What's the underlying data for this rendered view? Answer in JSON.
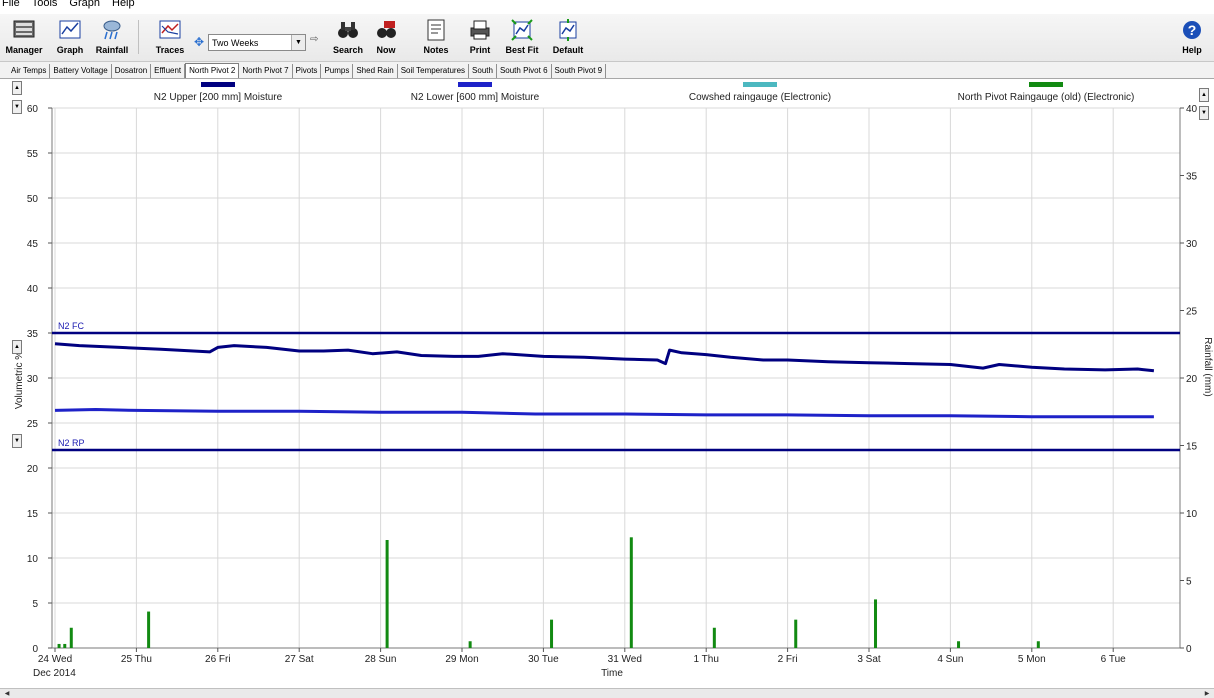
{
  "menu": [
    "File",
    "Tools",
    "Graph",
    "Help"
  ],
  "toolbar": {
    "manager": "Manager",
    "graph": "Graph",
    "rainfall": "Rainfall",
    "traces": "Traces",
    "period": "Two Weeks",
    "search": "Search",
    "now": "Now",
    "notes": "Notes",
    "print": "Print",
    "best_fit": "Best Fit",
    "default": "Default",
    "help": "Help"
  },
  "tabs": [
    "Air Temps",
    "Battery Voltage",
    "Dosatron",
    "Effluent",
    "North Pivot 2",
    "North Pivot 7",
    "Pivots",
    "Pumps",
    "Shed Rain",
    "Soil Temperatures",
    "South",
    "South Pivot 6",
    "South Pivot 9"
  ],
  "active_tab": "North Pivot 2",
  "chart_data": {
    "type": "line",
    "ylabel": "Volumetric %",
    "y2label": "Rainfall (mm)",
    "xlabel": "Time",
    "ylim": [
      0,
      60
    ],
    "y2lim": [
      0,
      40
    ],
    "yticks": [
      0,
      5,
      10,
      15,
      20,
      25,
      30,
      35,
      40,
      45,
      50,
      55,
      60
    ],
    "y2ticks": [
      0,
      5,
      10,
      15,
      20,
      25,
      30,
      35,
      40
    ],
    "xticks": [
      "24 Wed",
      "25 Thu",
      "26 Fri",
      "27 Sat",
      "28 Sun",
      "29 Mon",
      "30 Tue",
      "31 Wed",
      "1 Thu",
      "2 Fri",
      "3 Sat",
      "4 Sun",
      "5 Mon",
      "6 Tue"
    ],
    "x_sublabel": "Dec 2014",
    "grid": true,
    "legend": [
      {
        "name": "N2 Upper  [200 mm] Moisture",
        "color": "#000080"
      },
      {
        "name": "N2 Lower  [600 mm] Moisture",
        "color": "#1e22c8"
      },
      {
        "name": "Cowshed raingauge (Electronic)",
        "color": "#4cb8c0"
      },
      {
        "name": "North Pivot Raingauge (old) (Electronic)",
        "color": "#128a12"
      }
    ],
    "reference_lines": [
      {
        "label": "N2 FC",
        "value": 35,
        "color": "#000080"
      },
      {
        "label": "N2 RP",
        "value": 22,
        "color": "#000080"
      }
    ],
    "series": [
      {
        "name": "N2 Upper  [200 mm] Moisture",
        "axis": "left",
        "color": "#000080",
        "x": [
          0,
          0.3,
          0.8,
          1.3,
          1.9,
          2.0,
          2.2,
          2.6,
          3.0,
          3.3,
          3.6,
          3.9,
          4.2,
          4.5,
          4.9,
          5.2,
          5.5,
          6.0,
          6.5,
          7.0,
          7.4,
          7.5,
          7.55,
          7.7,
          8.0,
          8.3,
          8.7,
          9.0,
          9.5,
          10.0,
          10.5,
          11.0,
          11.4,
          11.6,
          12.0,
          12.4,
          12.9,
          13.3,
          13.5
        ],
        "values": [
          33.8,
          33.6,
          33.4,
          33.2,
          32.9,
          33.4,
          33.6,
          33.4,
          33.0,
          33.0,
          33.1,
          32.7,
          32.9,
          32.5,
          32.4,
          32.4,
          32.7,
          32.4,
          32.3,
          32.1,
          32.0,
          31.6,
          33.1,
          32.8,
          32.6,
          32.3,
          32.0,
          32.0,
          31.8,
          31.7,
          31.6,
          31.5,
          31.1,
          31.5,
          31.2,
          31.0,
          30.9,
          31.0,
          30.8
        ]
      },
      {
        "name": "N2 Lower  [600 mm] Moisture",
        "axis": "left",
        "color": "#1e22c8",
        "x": [
          0,
          0.5,
          1.0,
          2.0,
          3.0,
          4.0,
          5.0,
          5.9,
          6.5,
          7.0,
          8.0,
          9.0,
          10.0,
          11.0,
          12.0,
          13.0,
          13.5
        ],
        "values": [
          26.4,
          26.5,
          26.4,
          26.3,
          26.3,
          26.2,
          26.2,
          26.0,
          26.0,
          26.0,
          25.9,
          25.9,
          25.8,
          25.8,
          25.7,
          25.7,
          25.7
        ]
      },
      {
        "name": "North Pivot Raingauge (old) (Electronic)",
        "axis": "right",
        "type": "bar",
        "color": "#128a12",
        "x": [
          0.05,
          0.12,
          0.2,
          1.15,
          4.08,
          5.1,
          6.1,
          7.08,
          8.1,
          9.1,
          10.08,
          11.1,
          12.08
        ],
        "values": [
          0.3,
          0.3,
          1.5,
          2.7,
          8.0,
          0.5,
          2.1,
          8.2,
          1.5,
          2.1,
          3.6,
          0.5,
          0.5
        ]
      },
      {
        "name": "Cowshed raingauge (Electronic)",
        "axis": "right",
        "type": "bar",
        "color": "#4cb8c0",
        "x": [],
        "values": []
      }
    ]
  }
}
